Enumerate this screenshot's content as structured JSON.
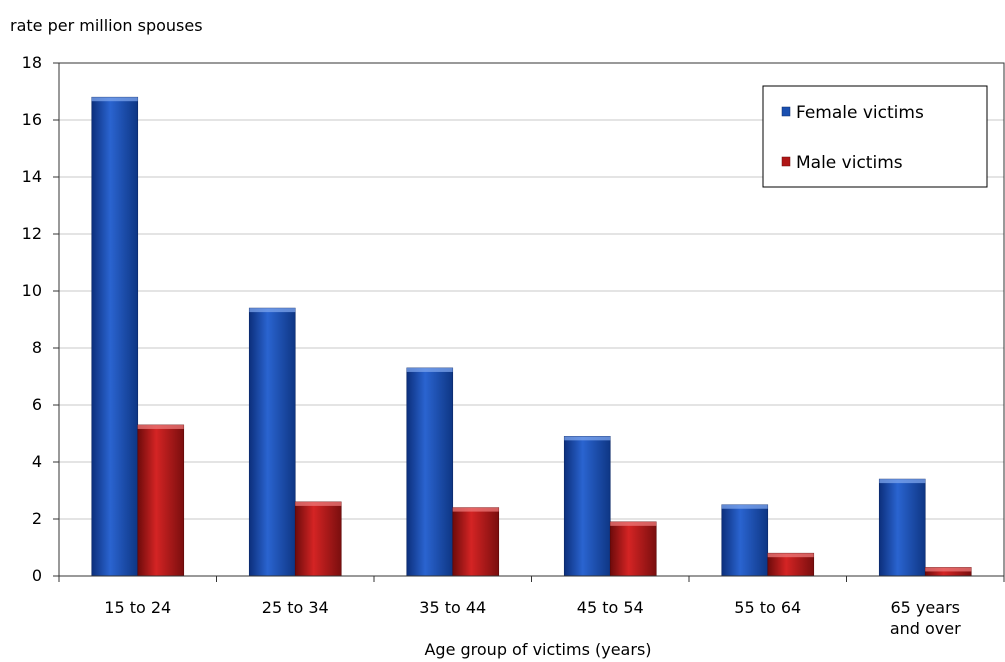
{
  "chart_data": {
    "type": "bar",
    "title": "",
    "ylabel": "rate per million spouses",
    "xlabel": "Age group of victims (years)",
    "ylim": [
      0,
      18
    ],
    "yticks": [
      0,
      2,
      4,
      6,
      8,
      10,
      12,
      14,
      16,
      18
    ],
    "categories": [
      [
        "15 to 24"
      ],
      [
        "25 to 34"
      ],
      [
        "35 to 44"
      ],
      [
        "45 to 54"
      ],
      [
        "55 to 64"
      ],
      [
        "65 years",
        "and over"
      ]
    ],
    "series": [
      {
        "name": "Female victims",
        "color": "#1a4fb0",
        "values": [
          16.8,
          9.4,
          7.3,
          4.9,
          2.5,
          3.4
        ]
      },
      {
        "name": "Male victims",
        "color": "#b01616",
        "values": [
          5.3,
          2.6,
          2.4,
          1.9,
          0.8,
          0.3
        ]
      }
    ],
    "grid": true,
    "legend_position": "top-right"
  }
}
